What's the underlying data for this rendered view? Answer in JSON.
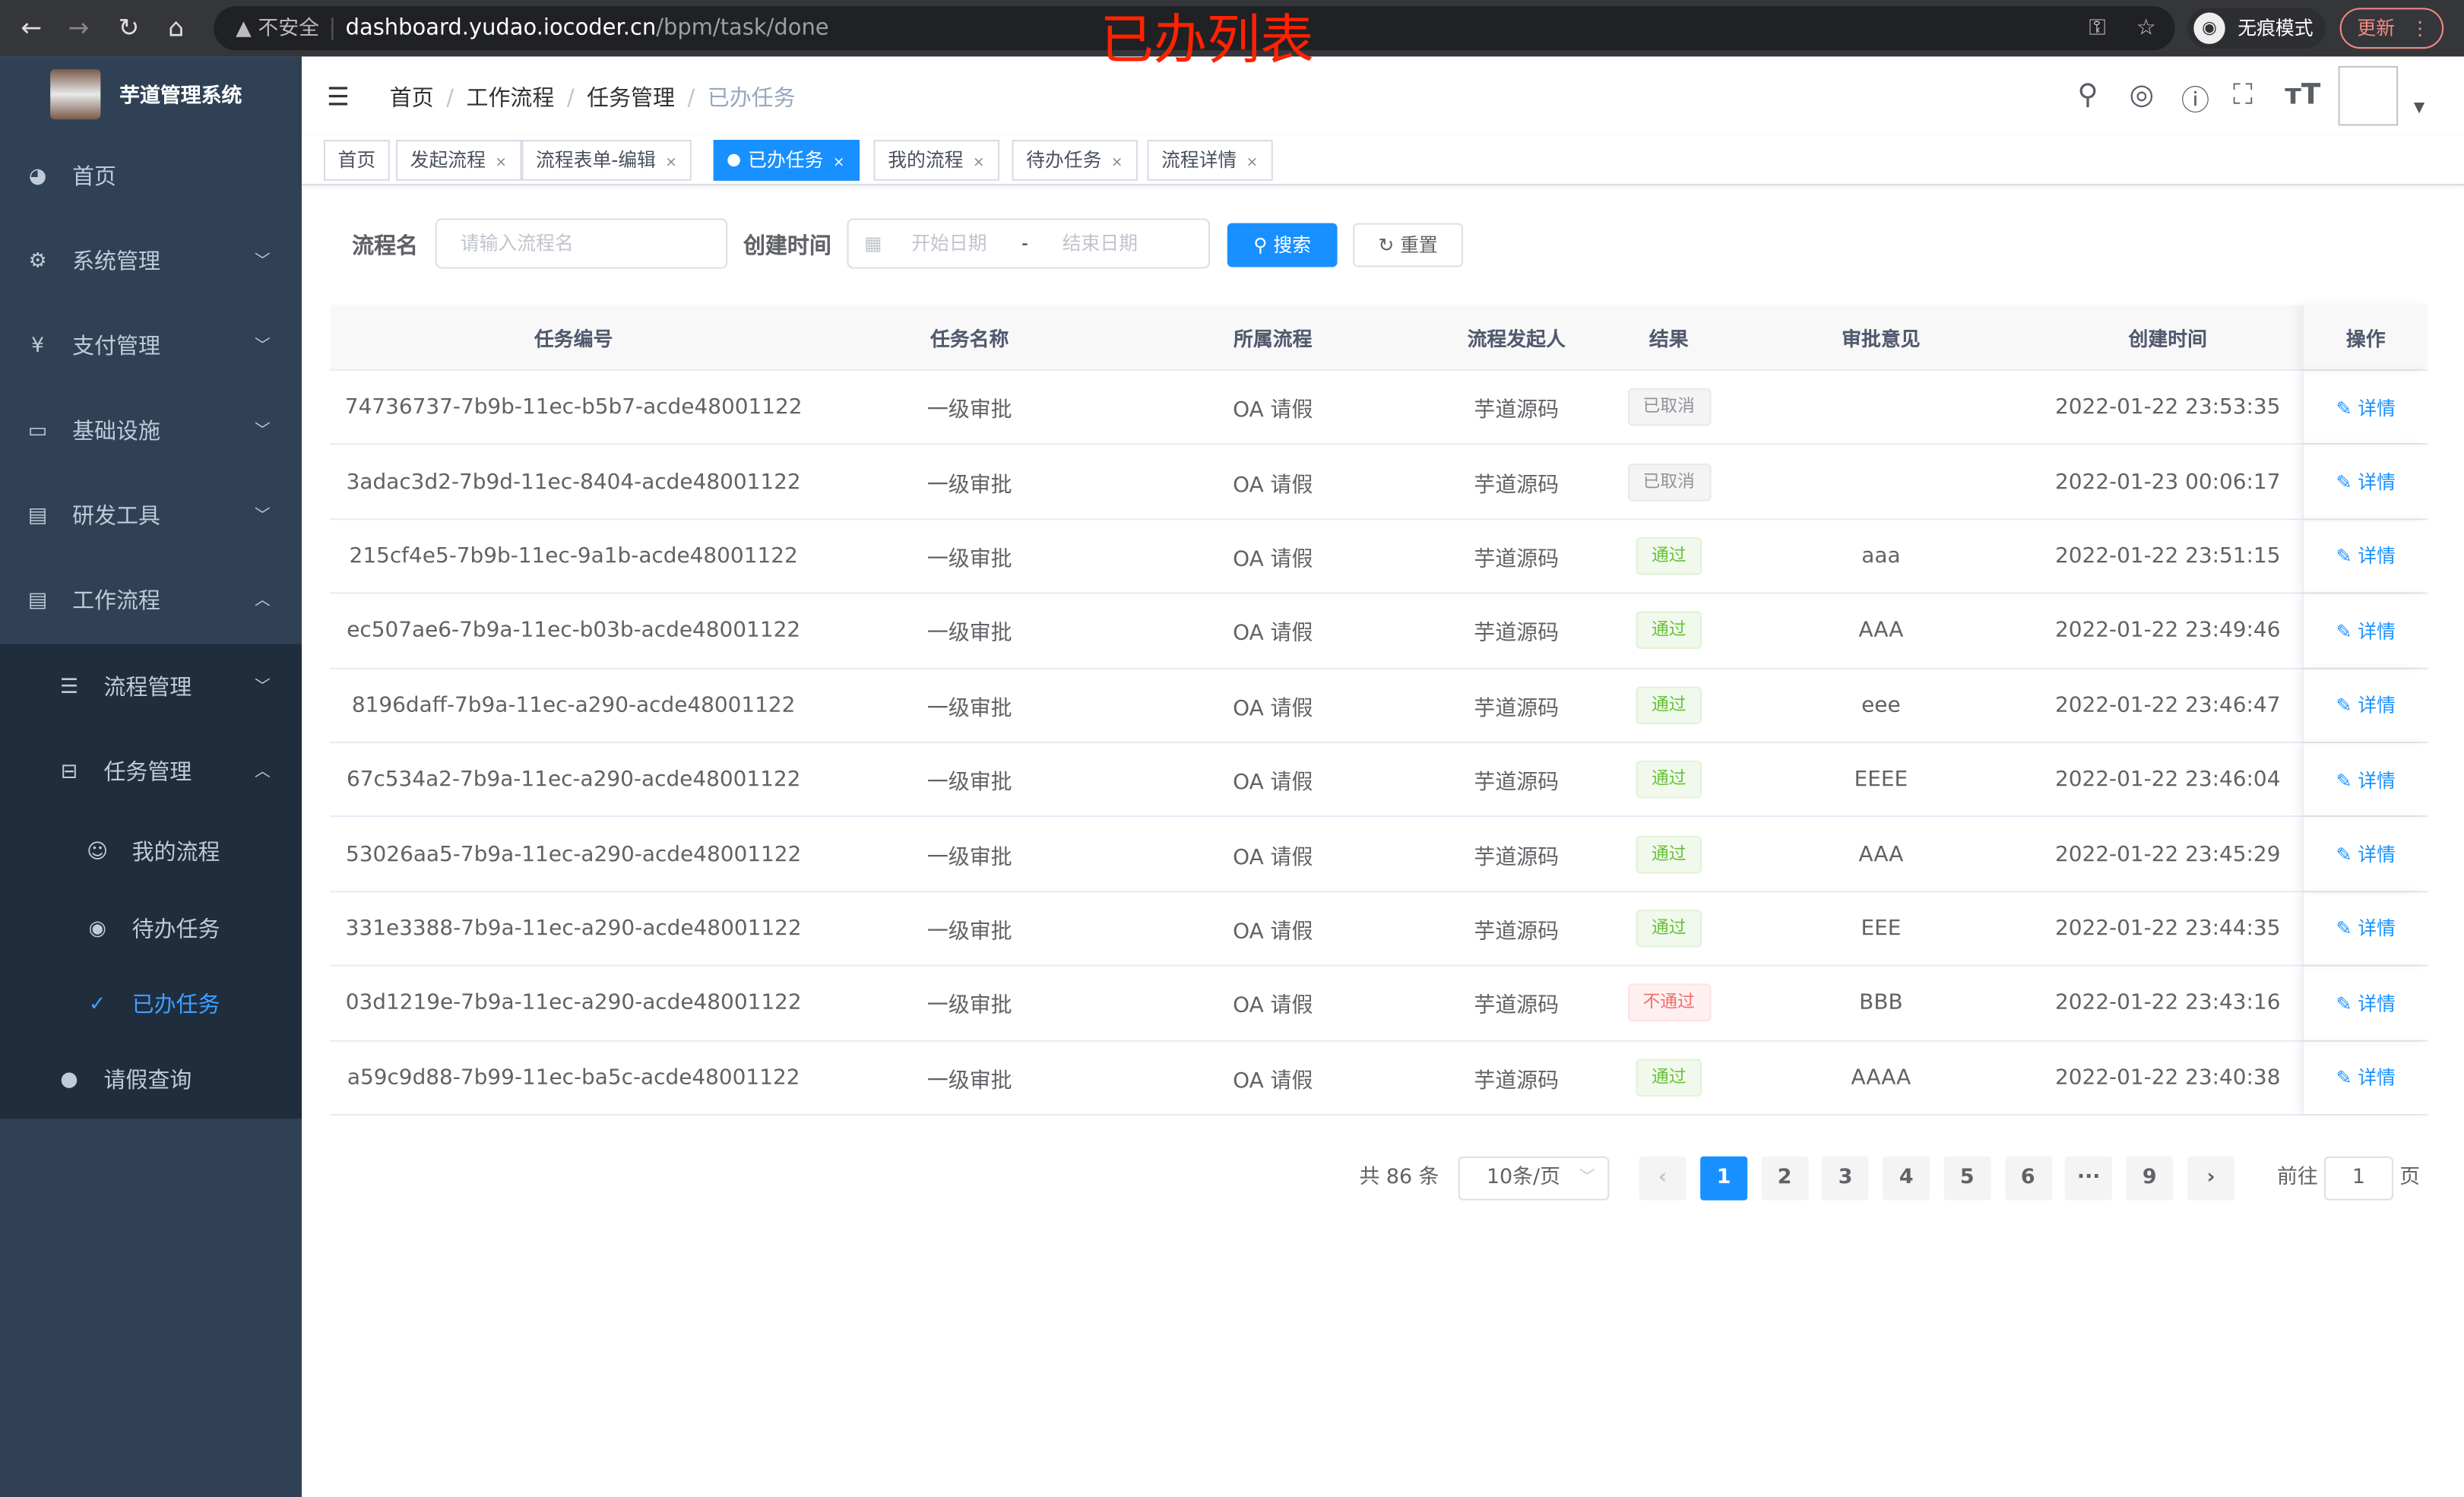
{
  "browser": {
    "security": "不安全",
    "url_host": "dashboard.yudao.iocoder.cn",
    "url_path": "/bpm/task/done",
    "incognito": "无痕模式",
    "update": "更新"
  },
  "annotation": "已办列表",
  "sidebar": {
    "brand": "芋道管理系统",
    "items": [
      {
        "label": "首页",
        "icon": "dashboard-icon",
        "arrow": ""
      },
      {
        "label": "系统管理",
        "icon": "gear-icon",
        "arrow": "﹀"
      },
      {
        "label": "支付管理",
        "icon": "yen-icon",
        "arrow": "﹀"
      },
      {
        "label": "基础设施",
        "icon": "monitor-icon",
        "arrow": "﹀"
      },
      {
        "label": "研发工具",
        "icon": "toolbox-icon",
        "arrow": "﹀"
      },
      {
        "label": "工作流程",
        "icon": "toolbox-icon",
        "arrow": "︿"
      }
    ],
    "sub": [
      {
        "label": "流程管理",
        "icon": "list-icon",
        "arrow": "﹀",
        "level": 1
      },
      {
        "label": "任务管理",
        "icon": "tree-icon",
        "arrow": "︿",
        "level": 1
      },
      {
        "label": "我的流程",
        "icon": "user-chat-icon",
        "arrow": "",
        "level": 2
      },
      {
        "label": "待办任务",
        "icon": "eye-icon",
        "arrow": "",
        "level": 2
      },
      {
        "label": "已办任务",
        "icon": "done-icon",
        "arrow": "",
        "level": 2,
        "active": true
      },
      {
        "label": "请假查询",
        "icon": "person-icon",
        "arrow": "",
        "level": 1
      }
    ]
  },
  "breadcrumb": [
    "首页",
    "工作流程",
    "任务管理",
    "已办任务"
  ],
  "tags": [
    {
      "label": "首页",
      "close": false
    },
    {
      "label": "发起流程",
      "close": true
    },
    {
      "label": "流程表单-编辑",
      "close": true
    },
    {
      "label": "已办任务",
      "close": true,
      "active": true
    },
    {
      "label": "我的流程",
      "close": true
    },
    {
      "label": "待办任务",
      "close": true
    },
    {
      "label": "流程详情",
      "close": true
    }
  ],
  "search": {
    "name_label": "流程名",
    "name_placeholder": "请输入流程名",
    "time_label": "创建时间",
    "start_placeholder": "开始日期",
    "range_sep": "-",
    "end_placeholder": "结束日期",
    "search_btn": "搜索",
    "reset_btn": "重置"
  },
  "table": {
    "columns": [
      "任务编号",
      "任务名称",
      "所属流程",
      "流程发起人",
      "结果",
      "审批意见",
      "创建时间",
      "操作"
    ],
    "detail_label": "详情",
    "rows": [
      {
        "id": "74736737-7b9b-11ec-b5b7-acde48001122",
        "name": "一级审批",
        "process": "OA 请假",
        "starter": "芋道源码",
        "result": "已取消",
        "status": "info",
        "comment": "",
        "time": "2022-01-22 23:53:35"
      },
      {
        "id": "3adac3d2-7b9d-11ec-8404-acde48001122",
        "name": "一级审批",
        "process": "OA 请假",
        "starter": "芋道源码",
        "result": "已取消",
        "status": "info",
        "comment": "",
        "time": "2022-01-23 00:06:17"
      },
      {
        "id": "215cf4e5-7b9b-11ec-9a1b-acde48001122",
        "name": "一级审批",
        "process": "OA 请假",
        "starter": "芋道源码",
        "result": "通过",
        "status": "success",
        "comment": "aaa",
        "time": "2022-01-22 23:51:15"
      },
      {
        "id": "ec507ae6-7b9a-11ec-b03b-acde48001122",
        "name": "一级审批",
        "process": "OA 请假",
        "starter": "芋道源码",
        "result": "通过",
        "status": "success",
        "comment": "AAA",
        "time": "2022-01-22 23:49:46"
      },
      {
        "id": "8196daff-7b9a-11ec-a290-acde48001122",
        "name": "一级审批",
        "process": "OA 请假",
        "starter": "芋道源码",
        "result": "通过",
        "status": "success",
        "comment": "eee",
        "time": "2022-01-22 23:46:47"
      },
      {
        "id": "67c534a2-7b9a-11ec-a290-acde48001122",
        "name": "一级审批",
        "process": "OA 请假",
        "starter": "芋道源码",
        "result": "通过",
        "status": "success",
        "comment": "EEEE",
        "time": "2022-01-22 23:46:04"
      },
      {
        "id": "53026aa5-7b9a-11ec-a290-acde48001122",
        "name": "一级审批",
        "process": "OA 请假",
        "starter": "芋道源码",
        "result": "通过",
        "status": "success",
        "comment": "AAA",
        "time": "2022-01-22 23:45:29"
      },
      {
        "id": "331e3388-7b9a-11ec-a290-acde48001122",
        "name": "一级审批",
        "process": "OA 请假",
        "starter": "芋道源码",
        "result": "通过",
        "status": "success",
        "comment": "EEE",
        "time": "2022-01-22 23:44:35"
      },
      {
        "id": "03d1219e-7b9a-11ec-a290-acde48001122",
        "name": "一级审批",
        "process": "OA 请假",
        "starter": "芋道源码",
        "result": "不通过",
        "status": "danger",
        "comment": "BBB",
        "time": "2022-01-22 23:43:16"
      },
      {
        "id": "a59c9d88-7b99-11ec-ba5c-acde48001122",
        "name": "一级审批",
        "process": "OA 请假",
        "starter": "芋道源码",
        "result": "通过",
        "status": "success",
        "comment": "AAAA",
        "time": "2022-01-22 23:40:38"
      }
    ]
  },
  "pagination": {
    "total": "共 86 条",
    "page_size": "10条/页",
    "pages": [
      "1",
      "2",
      "3",
      "4",
      "5",
      "6",
      "···",
      "9"
    ],
    "current": "1",
    "goto_label": "前往",
    "goto_value": "1",
    "goto_suffix": "页"
  },
  "colors": {
    "sidebar": "#304156",
    "submenu": "#1f2d3d",
    "primary": "#1890ff",
    "active_menu": "#409eff"
  }
}
